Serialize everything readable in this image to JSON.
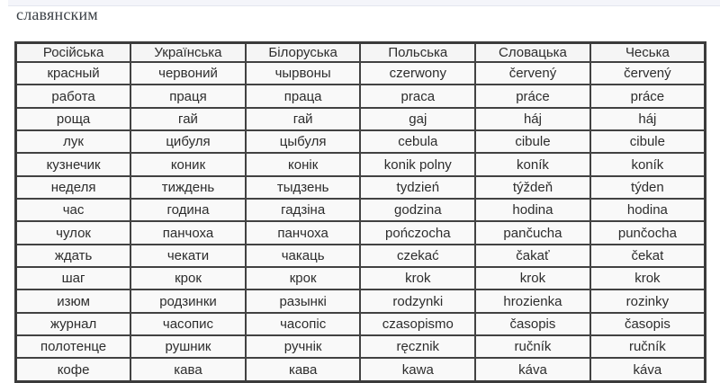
{
  "page": {
    "intro_text": "славянским"
  },
  "table": {
    "headers": [
      "Російська",
      "Українська",
      "Білоруська",
      "Польська",
      "Словацька",
      "Чеська"
    ],
    "rows": [
      [
        "красный",
        "червоний",
        "чырвоны",
        "czerwony",
        "červený",
        "červený"
      ],
      [
        "работа",
        "праця",
        "праца",
        "praca",
        "práce",
        "práce"
      ],
      [
        "роща",
        "гай",
        "гай",
        "gaj",
        "háj",
        "háj"
      ],
      [
        "лук",
        "цибуля",
        "цыбуля",
        "cebula",
        "cibule",
        "cibule"
      ],
      [
        "кузнечик",
        "коник",
        "конік",
        "konik polny",
        "koník",
        "koník"
      ],
      [
        "неделя",
        "тиждень",
        "тыдзень",
        "tydzień",
        "týždeň",
        "týden"
      ],
      [
        "час",
        "година",
        "гадзіна",
        "godzina",
        "hodina",
        "hodina"
      ],
      [
        "чулок",
        "панчоха",
        "панчоха",
        "pończocha",
        "pančucha",
        "punčocha"
      ],
      [
        "ждать",
        "чекати",
        "чакаць",
        "czekać",
        "čakať",
        "čekat"
      ],
      [
        "шаг",
        "крок",
        "крок",
        "krok",
        "krok",
        "krok"
      ],
      [
        "изюм",
        "родзинки",
        "разынкі",
        "rodzynki",
        "hrozienka",
        "rozinky"
      ],
      [
        "журнал",
        "часопис",
        "часопіс",
        "czasopismo",
        "časopis",
        "časopis"
      ],
      [
        "полотенце",
        "рушник",
        "ручнік",
        "ręcznik",
        "ručník",
        "ručník"
      ],
      [
        "кофе",
        "кава",
        "кава",
        "kawa",
        "káva",
        "káva"
      ]
    ]
  },
  "colors": {
    "page_background": "#ffffff",
    "top_bar_background": "#f4f5fa",
    "top_bar_border": "#e4e6ef",
    "table_border": "#3b3b3b",
    "cell_border": "#424242",
    "cell_background": "#f9f9f9",
    "text": "#2d2d2d",
    "intro_text": "#3a3f45"
  }
}
